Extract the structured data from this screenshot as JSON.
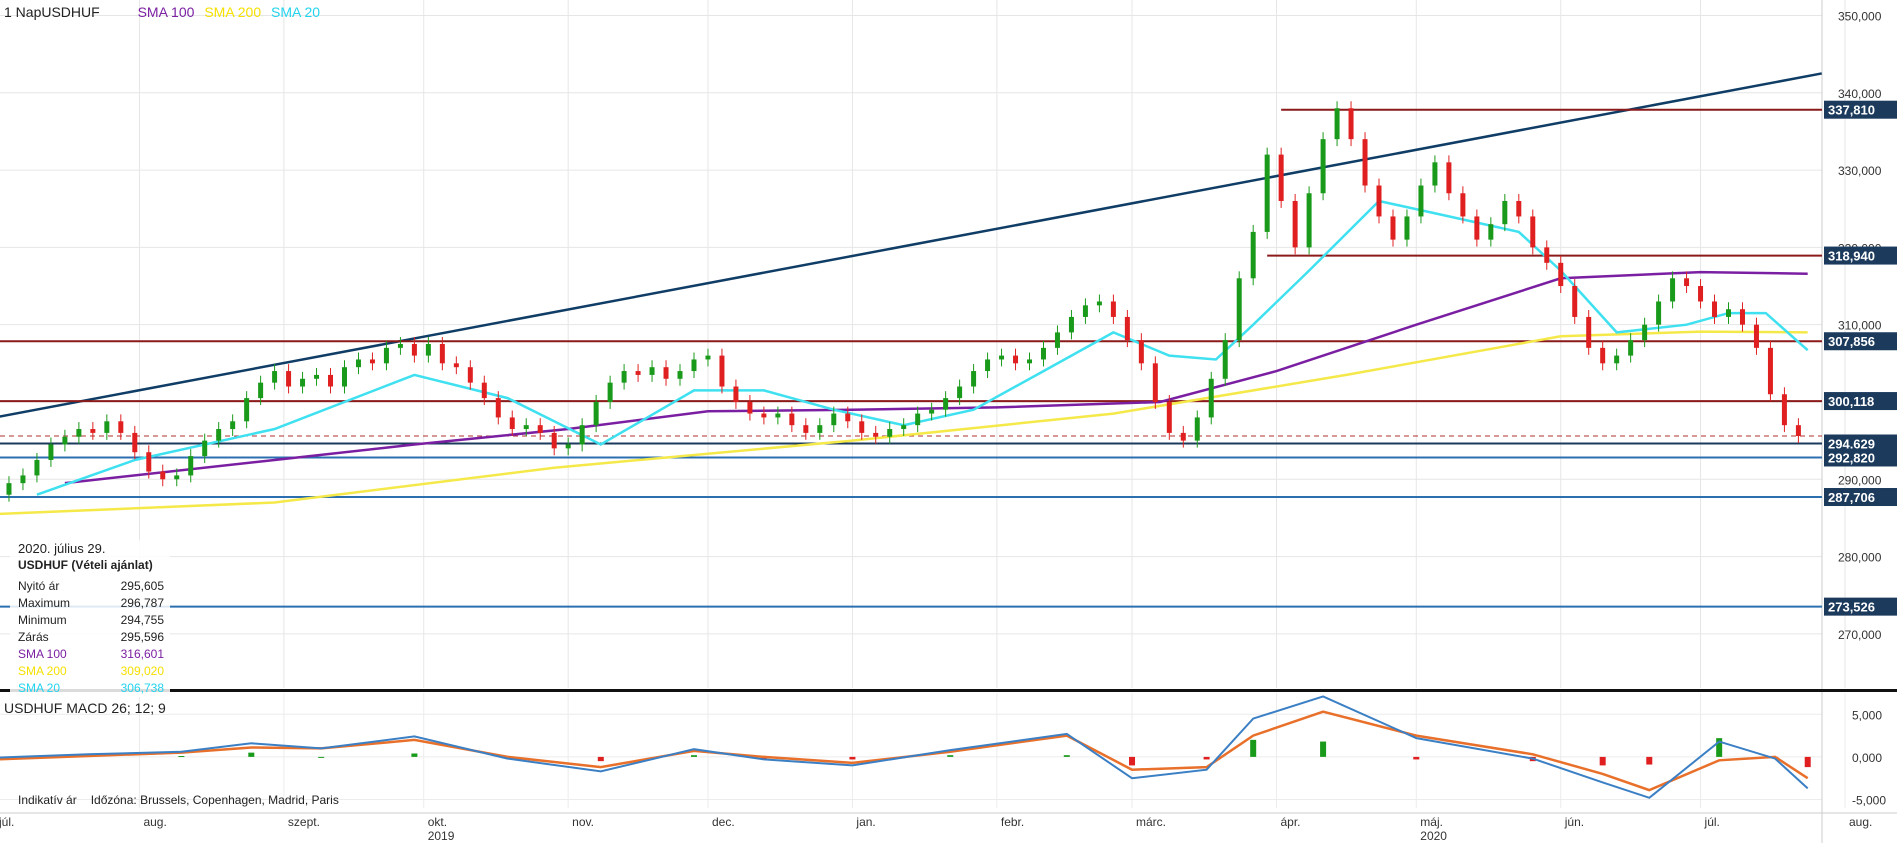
{
  "header": {
    "period": "1 Nap",
    "symbol": "USDHUF",
    "indicators": [
      {
        "label": "SMA 100",
        "color": "#7b1fa2"
      },
      {
        "label": "SMA 200",
        "color": "#f5e000"
      },
      {
        "label": "SMA 20",
        "color": "#22d3ee"
      }
    ]
  },
  "tooltip": {
    "date": "2020. július 29.",
    "name": "USDHUF (Vételi ajánlat)",
    "rows": [
      {
        "label": "Nyitó ár",
        "value": "295,605",
        "color": "#222222"
      },
      {
        "label": "Maximum",
        "value": "296,787",
        "color": "#222222"
      },
      {
        "label": "Minimum",
        "value": "294,755",
        "color": "#222222"
      },
      {
        "label": "Zárás",
        "value": "295,596",
        "color": "#222222"
      },
      {
        "label": "SMA 100",
        "value": "316,601",
        "color": "#7b1fa2"
      },
      {
        "label": "SMA 200",
        "value": "309,020",
        "color": "#f5e000"
      },
      {
        "label": "SMA 20",
        "value": "306,738",
        "color": "#22d3ee"
      }
    ]
  },
  "footer": {
    "indicative": "Indikatív ár",
    "timezone": "Időzóna: Brussels, Copenhagen, Madrid, Paris"
  },
  "chart_data": [
    {
      "type": "candlestick",
      "title": "1 Nap USDHUF",
      "ylim": [
        263,
        352
      ],
      "yticks": [
        "270,000",
        "280,000",
        "290,000",
        "300,000",
        "310,000",
        "320,000",
        "330,000",
        "340,000",
        "350,000"
      ],
      "ytick_values": [
        270,
        280,
        290,
        300,
        310,
        320,
        330,
        340,
        350
      ],
      "xlabels": [
        "júl.",
        "aug.",
        "szept.",
        "okt.",
        "nov.",
        "dec.",
        "jan.",
        "febr.",
        "márc.",
        "ápr.",
        "máj.",
        "jún.",
        "júl.",
        "aug."
      ],
      "xlabel_days": [
        0,
        31,
        62,
        92,
        123,
        153,
        184,
        215,
        244,
        275,
        305,
        336,
        366,
        397
      ],
      "years": [
        {
          "label": "2019",
          "day": 92
        },
        {
          "label": "2020",
          "day": 305
        }
      ],
      "x_span_days": 397,
      "candles": [
        [
          0,
          287,
          288
        ],
        [
          3,
          288,
          289.5
        ],
        [
          6,
          289.5,
          290.5
        ],
        [
          9,
          290.5,
          292.5
        ],
        [
          12,
          292.5,
          294.5
        ],
        [
          15,
          294.5,
          295.5
        ],
        [
          18,
          295.5,
          296.5
        ],
        [
          21,
          296.5,
          296
        ],
        [
          24,
          296,
          297.5
        ],
        [
          27,
          297.5,
          296
        ],
        [
          30,
          296,
          293.5
        ],
        [
          33,
          293.5,
          291
        ],
        [
          36,
          291,
          290
        ],
        [
          39,
          290,
          290.5
        ],
        [
          42,
          290.5,
          293
        ],
        [
          45,
          293,
          295
        ],
        [
          48,
          295,
          296.5
        ],
        [
          51,
          296.5,
          297.5
        ],
        [
          54,
          297.5,
          300.5
        ],
        [
          57,
          300.5,
          302.5
        ],
        [
          60,
          302.5,
          304
        ],
        [
          63,
          304,
          302
        ],
        [
          66,
          302,
          303
        ],
        [
          69,
          303,
          303.5
        ],
        [
          72,
          303.5,
          302
        ],
        [
          75,
          302,
          304.5
        ],
        [
          78,
          304.5,
          305.5
        ],
        [
          81,
          305.5,
          305
        ],
        [
          84,
          305,
          307
        ],
        [
          87,
          307,
          307.5
        ],
        [
          90,
          307.5,
          306
        ],
        [
          93,
          306,
          307.5
        ],
        [
          96,
          307.5,
          305
        ],
        [
          99,
          305,
          304.5
        ],
        [
          102,
          304.5,
          302.5
        ],
        [
          105,
          302.5,
          300.5
        ],
        [
          108,
          300.5,
          298
        ],
        [
          111,
          298,
          296.5
        ],
        [
          114,
          296.5,
          297
        ],
        [
          117,
          297,
          296
        ],
        [
          120,
          296,
          294
        ],
        [
          123,
          294,
          294.5
        ],
        [
          126,
          294.5,
          297
        ],
        [
          129,
          297,
          300
        ],
        [
          132,
          300,
          302.5
        ],
        [
          135,
          302.5,
          304
        ],
        [
          138,
          304,
          303.5
        ],
        [
          141,
          303.5,
          304.5
        ],
        [
          144,
          304.5,
          303
        ],
        [
          147,
          303,
          304
        ],
        [
          150,
          304,
          305.5
        ],
        [
          153,
          305.5,
          306
        ],
        [
          156,
          306,
          302
        ],
        [
          159,
          302,
          300
        ],
        [
          162,
          300,
          298.5
        ],
        [
          165,
          298.5,
          298
        ],
        [
          168,
          298,
          298.5
        ],
        [
          171,
          298.5,
          297
        ],
        [
          174,
          297,
          296
        ],
        [
          177,
          296,
          297
        ],
        [
          180,
          297,
          298.5
        ],
        [
          183,
          298.5,
          297.5
        ],
        [
          186,
          297.5,
          296
        ],
        [
          189,
          296,
          295.5
        ],
        [
          192,
          295.5,
          296.5
        ],
        [
          195,
          296.5,
          297
        ],
        [
          198,
          297,
          298.5
        ],
        [
          201,
          298.5,
          299
        ],
        [
          204,
          299,
          300.5
        ],
        [
          207,
          300.5,
          302
        ],
        [
          210,
          302,
          304
        ],
        [
          213,
          304,
          305.5
        ],
        [
          216,
          305.5,
          306
        ],
        [
          219,
          306,
          305
        ],
        [
          222,
          305,
          305.5
        ],
        [
          225,
          305.5,
          307
        ],
        [
          228,
          307,
          309
        ],
        [
          231,
          309,
          311
        ],
        [
          234,
          311,
          312.5
        ],
        [
          237,
          312.5,
          313
        ],
        [
          240,
          313,
          311
        ],
        [
          243,
          311,
          308
        ],
        [
          246,
          308,
          305
        ],
        [
          249,
          305,
          300
        ],
        [
          252,
          300,
          296
        ],
        [
          255,
          296,
          295
        ],
        [
          258,
          295,
          298
        ],
        [
          261,
          298,
          303
        ],
        [
          264,
          303,
          308
        ],
        [
          267,
          308,
          316
        ],
        [
          270,
          316,
          322
        ],
        [
          273,
          322,
          332
        ],
        [
          276,
          332,
          326
        ],
        [
          279,
          326,
          320
        ],
        [
          282,
          320,
          327
        ],
        [
          285,
          327,
          334
        ],
        [
          288,
          334,
          338
        ],
        [
          291,
          338,
          334
        ],
        [
          294,
          334,
          328
        ],
        [
          297,
          328,
          324
        ],
        [
          300,
          324,
          321
        ],
        [
          303,
          321,
          324
        ],
        [
          306,
          324,
          328
        ],
        [
          309,
          328,
          331
        ],
        [
          312,
          331,
          327
        ],
        [
          315,
          327,
          324
        ],
        [
          318,
          324,
          321
        ],
        [
          321,
          321,
          323
        ],
        [
          324,
          323,
          326
        ],
        [
          327,
          326,
          324
        ],
        [
          330,
          324,
          320
        ],
        [
          333,
          320,
          318
        ],
        [
          336,
          318,
          315
        ],
        [
          339,
          315,
          311
        ],
        [
          342,
          311,
          307
        ],
        [
          345,
          307,
          305
        ],
        [
          348,
          305,
          306
        ],
        [
          351,
          306,
          308
        ],
        [
          354,
          308,
          310
        ],
        [
          357,
          310,
          313
        ],
        [
          360,
          313,
          316
        ],
        [
          363,
          316,
          315
        ],
        [
          366,
          315,
          313
        ],
        [
          369,
          313,
          311
        ],
        [
          372,
          311,
          312
        ],
        [
          375,
          312,
          310
        ],
        [
          378,
          310,
          307
        ],
        [
          381,
          307,
          301
        ],
        [
          384,
          301,
          297
        ],
        [
          387,
          297,
          295.6
        ]
      ],
      "hlines": [
        {
          "y": 337.81,
          "label": "337,810",
          "color": "#8b1a1a",
          "from_day": 276
        },
        {
          "y": 318.94,
          "label": "318,940",
          "color": "#8b1a1a",
          "from_day": 273
        },
        {
          "y": 307.856,
          "label": "307,856",
          "color": "#8b1a1a",
          "from_day": 0
        },
        {
          "y": 300.118,
          "label": "300,118",
          "color": "#8b1a1a",
          "from_day": 0
        },
        {
          "y": 294.629,
          "label": "294,629",
          "color": "#1b3a5c",
          "from_day": 0
        },
        {
          "y": 292.82,
          "label": "292,820",
          "color": "#2c6fb0",
          "from_day": 0
        },
        {
          "y": 287.706,
          "label": "287,706",
          "color": "#2c6fb0",
          "from_day": 0
        },
        {
          "y": 273.526,
          "label": "273,526",
          "color": "#2c6fb0",
          "from_day": 0
        }
      ],
      "trendline": {
        "from": [
          0,
          298
        ],
        "to": [
          392,
          342.5
        ],
        "color": "#0f3d66"
      },
      "sma20": [
        [
          9,
          288
        ],
        [
          30,
          292.5
        ],
        [
          60,
          296.5
        ],
        [
          90,
          303.5
        ],
        [
          110,
          300.5
        ],
        [
          130,
          294.5
        ],
        [
          150,
          301.5
        ],
        [
          165,
          301.5
        ],
        [
          180,
          299
        ],
        [
          195,
          297
        ],
        [
          210,
          299
        ],
        [
          225,
          304
        ],
        [
          240,
          309
        ],
        [
          252,
          306
        ],
        [
          262,
          305.5
        ],
        [
          270,
          310
        ],
        [
          282,
          317
        ],
        [
          297,
          326
        ],
        [
          312,
          324
        ],
        [
          327,
          322
        ],
        [
          336,
          317
        ],
        [
          348,
          309
        ],
        [
          363,
          310
        ],
        [
          372,
          311.5
        ],
        [
          380,
          311.5
        ],
        [
          389,
          306.7
        ]
      ],
      "sma100": [
        [
          15,
          289.5
        ],
        [
          60,
          292.5
        ],
        [
          90,
          294.5
        ],
        [
          123,
          296.5
        ],
        [
          153,
          298.8
        ],
        [
          184,
          299
        ],
        [
          215,
          299.3
        ],
        [
          250,
          300
        ],
        [
          275,
          304
        ],
        [
          305,
          310
        ],
        [
          336,
          316
        ],
        [
          366,
          316.8
        ],
        [
          389,
          316.6
        ]
      ],
      "sma200": [
        [
          0,
          285.5
        ],
        [
          60,
          287
        ],
        [
          120,
          291.5
        ],
        [
          184,
          295
        ],
        [
          240,
          298.5
        ],
        [
          290,
          303.5
        ],
        [
          336,
          308.5
        ],
        [
          366,
          309.1
        ],
        [
          389,
          309
        ]
      ]
    },
    {
      "type": "bar",
      "title": "USDHUF MACD 26; 12; 9",
      "ylim": [
        -6000,
        7500
      ],
      "yticks": [
        "5,000",
        "0,000",
        "-5,000"
      ],
      "ytick_values": [
        5000,
        0,
        -5000
      ],
      "macd": [
        [
          0,
          -100
        ],
        [
          20,
          300
        ],
        [
          40,
          600
        ],
        [
          55,
          1600
        ],
        [
          70,
          1000
        ],
        [
          90,
          2400
        ],
        [
          110,
          -200
        ],
        [
          130,
          -1700
        ],
        [
          150,
          900
        ],
        [
          165,
          -300
        ],
        [
          184,
          -1000
        ],
        [
          205,
          800
        ],
        [
          230,
          2700
        ],
        [
          244,
          -2500
        ],
        [
          260,
          -1500
        ],
        [
          270,
          4500
        ],
        [
          285,
          7100
        ],
        [
          305,
          2200
        ],
        [
          330,
          -200
        ],
        [
          345,
          -3000
        ],
        [
          355,
          -4800
        ],
        [
          370,
          1800
        ],
        [
          382,
          -200
        ],
        [
          389,
          -3700
        ]
      ],
      "signal": [
        [
          0,
          -300
        ],
        [
          20,
          100
        ],
        [
          40,
          500
        ],
        [
          55,
          1100
        ],
        [
          70,
          1000
        ],
        [
          90,
          2000
        ],
        [
          110,
          0
        ],
        [
          130,
          -1200
        ],
        [
          150,
          700
        ],
        [
          165,
          0
        ],
        [
          184,
          -700
        ],
        [
          205,
          600
        ],
        [
          230,
          2500
        ],
        [
          244,
          -1500
        ],
        [
          260,
          -1200
        ],
        [
          270,
          2500
        ],
        [
          285,
          5300
        ],
        [
          305,
          2500
        ],
        [
          330,
          300
        ],
        [
          345,
          -2000
        ],
        [
          355,
          -3900
        ],
        [
          370,
          -400
        ],
        [
          382,
          0
        ],
        [
          389,
          -2500
        ]
      ],
      "histogram": [
        [
          0,
          200
        ],
        [
          20,
          150
        ],
        [
          40,
          100
        ],
        [
          55,
          500
        ],
        [
          70,
          0
        ],
        [
          90,
          400
        ],
        [
          110,
          -200
        ],
        [
          130,
          -500
        ],
        [
          150,
          200
        ],
        [
          165,
          -300
        ],
        [
          184,
          -300
        ],
        [
          205,
          200
        ],
        [
          230,
          200
        ],
        [
          244,
          -1000
        ],
        [
          260,
          -300
        ],
        [
          270,
          2000
        ],
        [
          285,
          1800
        ],
        [
          305,
          -300
        ],
        [
          330,
          -500
        ],
        [
          345,
          -1000
        ],
        [
          355,
          -900
        ],
        [
          370,
          2200
        ],
        [
          382,
          -200
        ],
        [
          389,
          -1200
        ]
      ]
    }
  ]
}
